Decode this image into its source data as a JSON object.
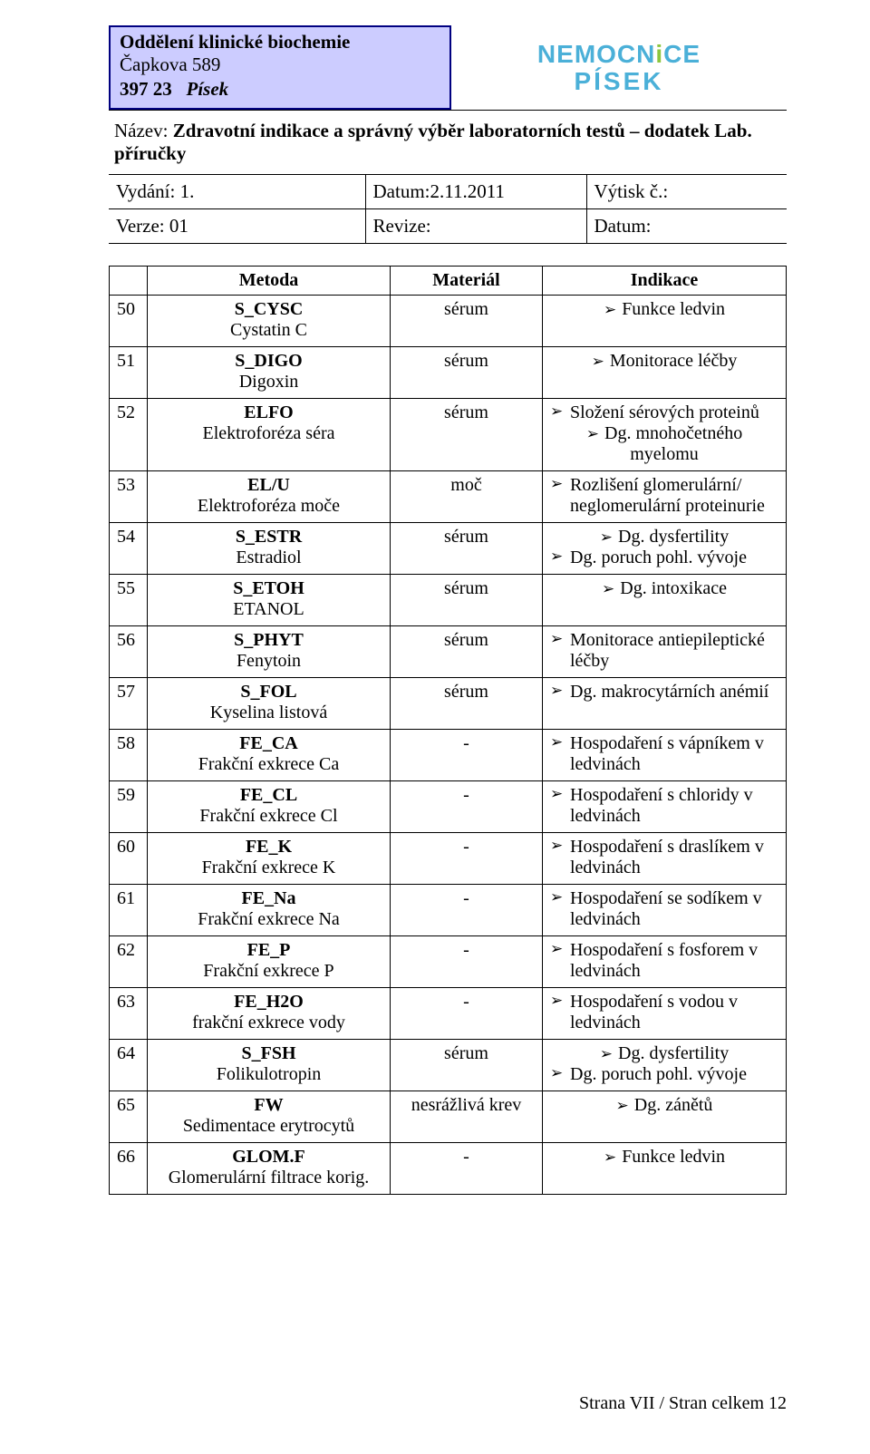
{
  "colors": {
    "border_blue": "#000080",
    "box_fill": "#ccccff",
    "logo_blue": "#4bb0d8",
    "logo_green": "#8cc63f",
    "text": "#000000",
    "bg": "#ffffff",
    "rule": "#000000"
  },
  "org": {
    "line1": "Oddělení klinické biochemie",
    "line2": "Čapkova 589",
    "zip": "397 23",
    "city": "Písek"
  },
  "logo": {
    "l1a": "NEMOCN",
    "l1i": "i",
    "l1b": "CE",
    "l2": "PÍSEK"
  },
  "title": {
    "label": "Název:",
    "value": "Zdravotní indikace a správný výběr laboratorních testů – dodatek Lab. příručky"
  },
  "meta": {
    "r1c1": "Vydání: 1.",
    "r1c2": "Datum:2.11.2011",
    "r1c3": "Výtisk č.:",
    "r2c1": "Verze: 01",
    "r2c2": "Revize:",
    "r2c3": "Datum:"
  },
  "table": {
    "headers": {
      "metoda": "Metoda",
      "material": "Materiál",
      "indikace": "Indikace"
    },
    "rows": [
      {
        "n": "50",
        "code": "S_CYSC",
        "name": "Cystatin C",
        "material": "sérum",
        "ind": [
          "Funkce ledvin"
        ],
        "ind_align": [
          "center"
        ]
      },
      {
        "n": "51",
        "code": "S_DIGO",
        "name": "Digoxin",
        "material": "sérum",
        "ind": [
          "Monitorace léčby"
        ],
        "ind_align": [
          "center"
        ]
      },
      {
        "n": "52",
        "code": "ELFO",
        "name": "Elektroforéza séra",
        "material": "sérum",
        "ind": [
          "Složení sérových proteinů",
          "Dg. mnohočetného myelomu"
        ],
        "ind_align": [
          "left",
          "center"
        ]
      },
      {
        "n": "53",
        "code": "EL/U",
        "name": "Elektroforéza moče",
        "material": "moč",
        "ind": [
          "Rozlišení glomerulární/ neglomerulární proteinurie"
        ],
        "ind_align": [
          "left"
        ]
      },
      {
        "n": "54",
        "code": "S_ESTR",
        "name": "Estradiol",
        "material": "sérum",
        "ind": [
          "Dg. dysfertility",
          "Dg. poruch pohl. vývoje"
        ],
        "ind_align": [
          "center",
          "left"
        ]
      },
      {
        "n": "55",
        "code": "S_ETOH",
        "name": "ETANOL",
        "material": "sérum",
        "ind": [
          "Dg. intoxikace"
        ],
        "ind_align": [
          "center"
        ]
      },
      {
        "n": "56",
        "code": "S_PHYT",
        "name": "Fenytoin",
        "material": "sérum",
        "ind": [
          "Monitorace antiepileptické léčby"
        ],
        "ind_align": [
          "left"
        ]
      },
      {
        "n": "57",
        "code": "S_FOL",
        "name": "Kyselina listová",
        "material": "sérum",
        "ind": [
          "Dg. makrocytárních anémií"
        ],
        "ind_align": [
          "left"
        ]
      },
      {
        "n": "58",
        "code": "FE_CA",
        "name": "Frakční exkrece Ca",
        "material": "-",
        "ind": [
          "Hospodaření s vápníkem v ledvinách"
        ],
        "ind_align": [
          "left"
        ]
      },
      {
        "n": "59",
        "code": "FE_CL",
        "name": "Frakční exkrece Cl",
        "material": "-",
        "ind": [
          "Hospodaření s chloridy v ledvinách"
        ],
        "ind_align": [
          "left"
        ]
      },
      {
        "n": "60",
        "code": "FE_K",
        "name": "Frakční exkrece K",
        "material": "-",
        "ind": [
          "Hospodaření s draslíkem v ledvinách"
        ],
        "ind_align": [
          "left"
        ]
      },
      {
        "n": "61",
        "code": "FE_Na",
        "name": "Frakční exkrece Na",
        "material": "-",
        "ind": [
          "Hospodaření se sodíkem v ledvinách"
        ],
        "ind_align": [
          "left"
        ]
      },
      {
        "n": "62",
        "code": "FE_P",
        "name": "Frakční exkrece P",
        "material": "-",
        "ind": [
          "Hospodaření s fosforem v ledvinách"
        ],
        "ind_align": [
          "left"
        ]
      },
      {
        "n": "63",
        "code": "FE_H2O",
        "name": "frakční exkrece vody",
        "material": "-",
        "ind": [
          "Hospodaření s vodou v ledvinách"
        ],
        "ind_align": [
          "left"
        ]
      },
      {
        "n": "64",
        "code": "S_FSH",
        "name": "Folikulotropin",
        "material": "sérum",
        "ind": [
          "Dg. dysfertility",
          "Dg. poruch pohl. vývoje"
        ],
        "ind_align": [
          "center",
          "left"
        ]
      },
      {
        "n": "65",
        "code": "FW",
        "name": "Sedimentace erytrocytů",
        "material": "nesrážlivá krev",
        "ind": [
          "Dg. zánětů"
        ],
        "ind_align": [
          "center"
        ]
      },
      {
        "n": "66",
        "code": "GLOM.F",
        "name": "Glomerulární filtrace korig.",
        "material": "-",
        "ind": [
          "Funkce ledvin"
        ],
        "ind_align": [
          "center"
        ]
      }
    ]
  },
  "footer": "Strana VII / Stran celkem 12"
}
